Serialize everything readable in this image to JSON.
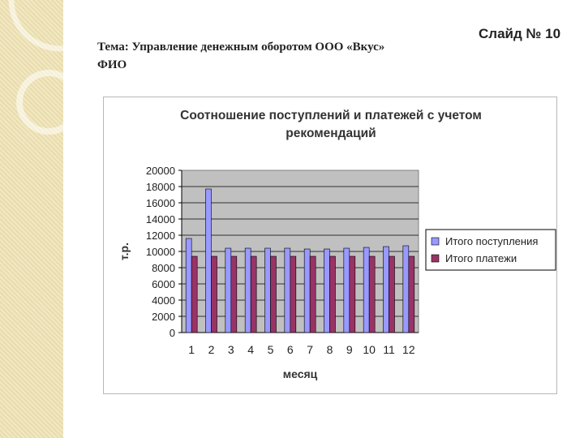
{
  "slide": {
    "topic_line": "Тема: Управление денежным оборотом ООО «Вкус»",
    "author_line": "ФИО",
    "slide_number": "Слайд № 10"
  },
  "colors": {
    "receipts": "#9999ff",
    "payments": "#993366",
    "plot_bg": "#c0c0c0",
    "strip": "#efe3b4"
  },
  "chart_data": {
    "type": "bar",
    "title_line1": "Соотношение поступлений и платежей с учетом",
    "title_line2": "рекомендаций",
    "xlabel": "месяц",
    "ylabel": "т.р.",
    "ylim": [
      0,
      20000
    ],
    "ytick_step": 2000,
    "grid": true,
    "legend_position": "right",
    "categories": [
      "1",
      "2",
      "3",
      "4",
      "5",
      "6",
      "7",
      "8",
      "9",
      "10",
      "11",
      "12"
    ],
    "series": [
      {
        "name": "Итого поступления",
        "color": "#9999ff",
        "values": [
          11600,
          17700,
          10400,
          10400,
          10400,
          10400,
          10300,
          10300,
          10400,
          10500,
          10600,
          10700
        ]
      },
      {
        "name": "Итого платежи",
        "color": "#993366",
        "values": [
          9400,
          9400,
          9400,
          9400,
          9400,
          9400,
          9400,
          9400,
          9400,
          9400,
          9400,
          9400
        ]
      }
    ]
  }
}
